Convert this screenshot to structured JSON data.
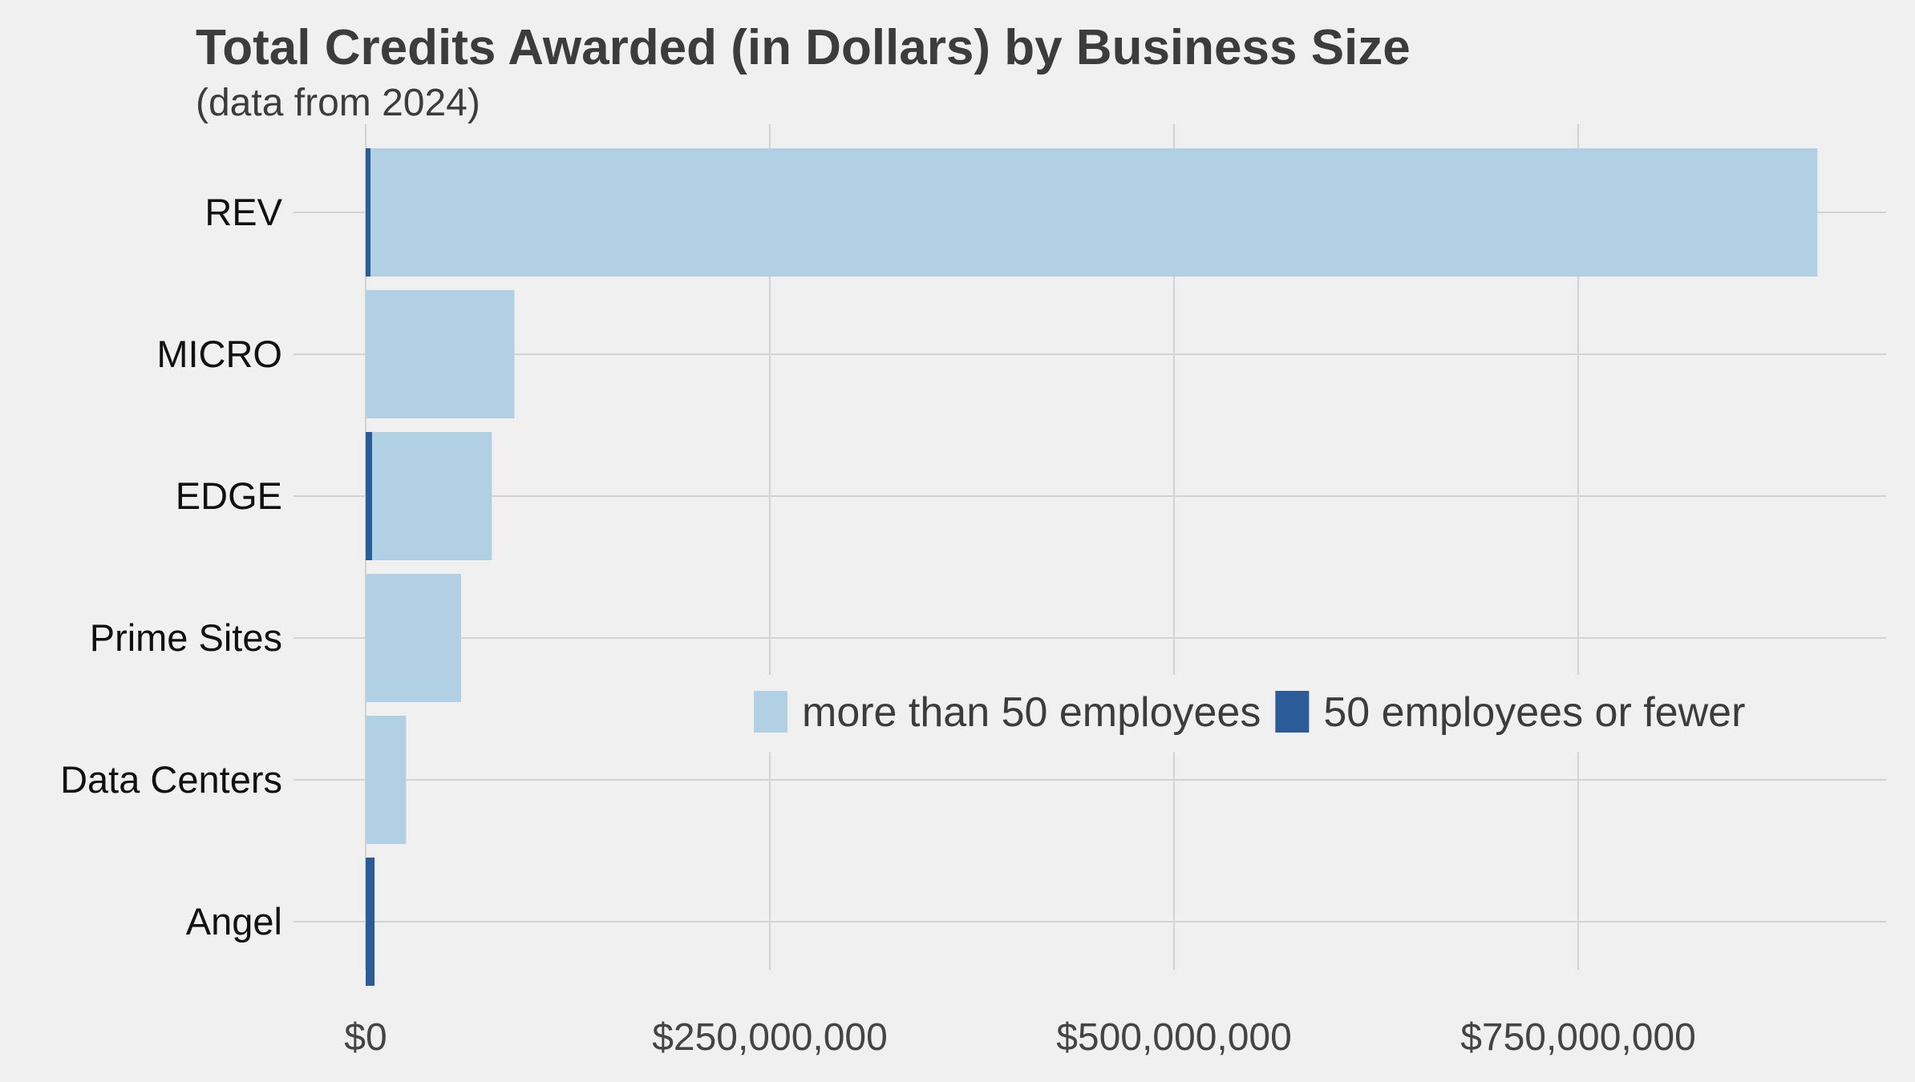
{
  "chart_data": {
    "type": "bar",
    "orientation": "horizontal",
    "stacked": true,
    "title": "Total Credits Awarded (in Dollars) by Business Size",
    "subtitle": "(data from 2024)",
    "categories": [
      "REV",
      "MICRO",
      "EDGE",
      "Prime Sites",
      "Data Centers",
      "Angel"
    ],
    "series": [
      {
        "name": "50 employees or fewer",
        "color": "#2c5b9a",
        "values": [
          3000000,
          0,
          4000000,
          0,
          0,
          5500000
        ]
      },
      {
        "name": "more than 50 employees",
        "color": "#b2d0e4",
        "values": [
          895000000,
          92000000,
          74000000,
          59000000,
          25000000,
          0
        ]
      }
    ],
    "xticks": [
      {
        "value": 0,
        "label": "$0"
      },
      {
        "value": 250000000,
        "label": "$250,000,000"
      },
      {
        "value": 500000000,
        "label": "$500,000,000"
      },
      {
        "value": 750000000,
        "label": "$750,000,000"
      }
    ],
    "xlim": [
      0,
      945000000
    ],
    "grid": true,
    "legend": {
      "placement": "lower-right",
      "entries": [
        "more than 50 employees",
        "50 employees or fewer"
      ]
    }
  }
}
